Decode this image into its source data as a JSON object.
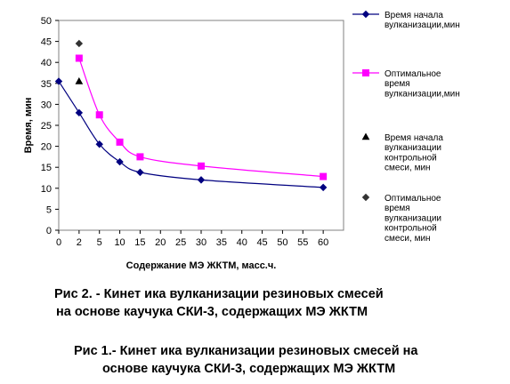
{
  "chart_data": {
    "type": "line",
    "xlabel": "Содержание МЭ ЖКТМ, масс.ч.",
    "ylabel": "Время, мин",
    "categories": [
      0,
      2,
      5,
      10,
      15,
      20,
      25,
      30,
      35,
      40,
      45,
      50,
      55,
      60
    ],
    "xlim": [
      0,
      60
    ],
    "ylim": [
      0,
      50
    ],
    "y_ticks": [
      0,
      5,
      10,
      15,
      20,
      25,
      30,
      35,
      40,
      45,
      50
    ],
    "grid": false,
    "legend_position": "right",
    "series": [
      {
        "name": "Время начала вулканизации,мин",
        "legend_lines": [
          "Время начала",
          "вулканизации,мин"
        ],
        "style": "line+diamond",
        "color": "#000080",
        "x": [
          0,
          2,
          5,
          10,
          15,
          30,
          60
        ],
        "values": [
          35.5,
          28,
          20.5,
          16.3,
          13.8,
          12,
          10.2
        ]
      },
      {
        "name": "Оптимальное время вулканизации,мин",
        "legend_lines": [
          "Оптимальное",
          "время",
          "вулканизации,мин"
        ],
        "style": "line+square",
        "color": "#FF00FF",
        "x": [
          2,
          5,
          10,
          15,
          30,
          60
        ],
        "values": [
          41,
          27.5,
          21,
          17.5,
          15.3,
          12.8
        ]
      },
      {
        "name": "Время начала вулканизации контрольной смеси, мин",
        "legend_lines": [
          "Время начала",
          "вулканизации",
          "контрольной",
          "смеси, мин"
        ],
        "style": "triangle",
        "color": "#000000",
        "x": [
          2
        ],
        "values": [
          35.5
        ]
      },
      {
        "name": "Оптимальное время вулканизации контрольной смеси, мин",
        "legend_lines": [
          "Оптимальное",
          "время",
          "вулканизации",
          "контрольной",
          "смеси, мин"
        ],
        "style": "diamond",
        "color": "#333333",
        "x": [
          2
        ],
        "values": [
          44.5
        ]
      }
    ]
  },
  "captions": [
    {
      "line1": "Рис 2. - Кинет ика вулканизации резиновых смесей",
      "line2": "на основе каучука СКИ-3, содержащих МЭ ЖКТМ"
    },
    {
      "line1": "Рис 1.- Кинет ика вулканизации резиновых смесей на",
      "line2": "основе каучука СКИ-3, содержащих МЭ ЖКТМ"
    }
  ]
}
